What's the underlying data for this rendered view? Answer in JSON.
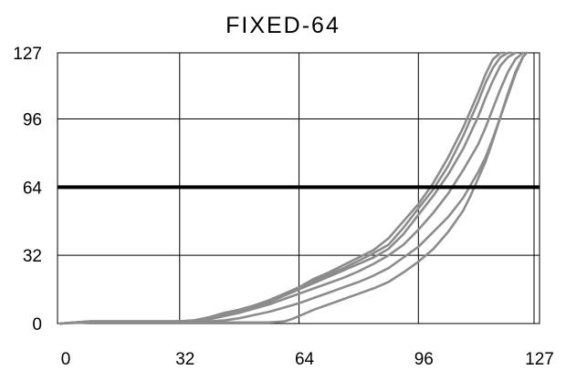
{
  "chart_data": {
    "type": "line",
    "title": "FIXED-64",
    "xlabel": "",
    "ylabel": "",
    "xlim": [
      0,
      127
    ],
    "ylim": [
      0,
      127
    ],
    "x_ticks": [
      "0",
      "32",
      "64",
      "96",
      "127"
    ],
    "y_ticks": [
      "0",
      "32",
      "64",
      "96",
      "127"
    ],
    "grid": true,
    "legend": "none",
    "reference_line": {
      "y": 64,
      "color": "#000000"
    },
    "series_color": "#8c8c8c",
    "series": [
      {
        "x": [
          0,
          8,
          16,
          24,
          32,
          36,
          40,
          44,
          48,
          52,
          56,
          60,
          64,
          68,
          72,
          76,
          80,
          84,
          88,
          92,
          96,
          100,
          104,
          108,
          112,
          114,
          116,
          118,
          119
        ],
        "y": [
          0,
          1,
          1,
          1,
          1,
          1.5,
          3,
          5,
          6.5,
          8.5,
          11,
          14,
          17,
          21,
          24,
          27.5,
          31,
          34.5,
          40,
          48,
          56,
          66,
          78,
          92,
          108,
          117,
          124,
          127,
          127
        ]
      },
      {
        "x": [
          0,
          8,
          16,
          24,
          32,
          36,
          40,
          44,
          48,
          52,
          56,
          60,
          64,
          68,
          72,
          76,
          80,
          84,
          88,
          92,
          96,
          100,
          104,
          108,
          112,
          114,
          116,
          118,
          120,
          121
        ],
        "y": [
          0,
          1,
          1,
          1,
          1,
          1.5,
          3,
          4.5,
          6,
          8,
          10.5,
          13.5,
          16.5,
          20,
          23,
          26,
          29.5,
          33,
          37,
          45,
          54,
          63,
          74,
          88,
          104,
          113,
          120,
          125,
          127,
          127
        ]
      },
      {
        "x": [
          0,
          8,
          16,
          24,
          32,
          36,
          40,
          44,
          48,
          52,
          56,
          60,
          64,
          68,
          72,
          76,
          80,
          84,
          88,
          92,
          96,
          100,
          104,
          108,
          112,
          114,
          116,
          118,
          120,
          122
        ],
        "y": [
          0,
          1,
          1,
          1,
          1,
          1.5,
          2.5,
          4,
          5.5,
          7.5,
          10,
          13,
          16,
          19,
          22,
          25,
          28,
          31,
          35,
          42,
          51,
          60,
          70,
          82,
          97,
          106,
          114,
          121,
          125,
          127
        ]
      },
      {
        "x": [
          0,
          8,
          16,
          24,
          32,
          36,
          40,
          44,
          48,
          52,
          56,
          60,
          64,
          68,
          72,
          76,
          80,
          84,
          88,
          92,
          96,
          100,
          104,
          108,
          112,
          114,
          116,
          118,
          120,
          122,
          124
        ],
        "y": [
          0,
          1,
          1,
          1,
          1,
          1.2,
          2,
          3.5,
          5,
          7,
          9,
          11.5,
          14,
          16.5,
          19,
          21.5,
          24.5,
          28,
          32,
          37,
          44,
          52,
          61,
          72,
          84,
          92,
          101,
          110,
          118,
          124,
          127
        ]
      },
      {
        "x": [
          0,
          8,
          16,
          24,
          32,
          36,
          40,
          44,
          48,
          52,
          56,
          60,
          64,
          68,
          72,
          76,
          80,
          84,
          88,
          92,
          96,
          100,
          104,
          108,
          112,
          114,
          116,
          118,
          120,
          122,
          124,
          125
        ],
        "y": [
          0,
          1,
          1,
          1,
          1,
          1,
          1,
          1.5,
          2.5,
          4,
          5.5,
          7.5,
          9.5,
          12,
          14.5,
          17,
          19.5,
          22.5,
          26,
          31,
          36,
          43,
          50,
          59,
          71,
          78,
          87,
          97,
          107,
          117,
          125,
          127
        ]
      },
      {
        "x": [
          0,
          8,
          16,
          24,
          32,
          40,
          48,
          56,
          60,
          62,
          64,
          66,
          68,
          72,
          76,
          80,
          84,
          88,
          92,
          96,
          100,
          104,
          108,
          110,
          112,
          114,
          116,
          118,
          120,
          122,
          124,
          125
        ],
        "y": [
          0,
          0.5,
          0.5,
          0.5,
          0.5,
          0.5,
          0.5,
          0.5,
          1,
          2,
          3.5,
          5,
          6.5,
          9,
          11.5,
          14,
          16.5,
          19.5,
          24,
          29,
          35,
          43,
          53,
          60,
          68,
          76,
          86,
          97,
          108,
          118,
          125,
          127
        ]
      }
    ]
  }
}
